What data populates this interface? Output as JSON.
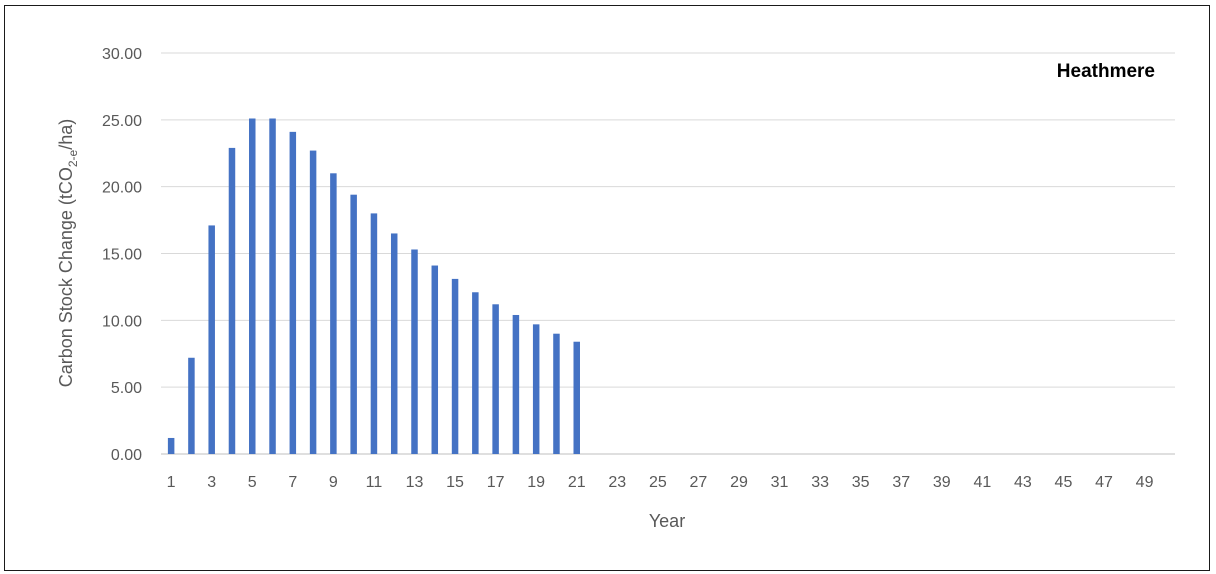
{
  "chart_data": {
    "type": "bar",
    "title": "Heathmere",
    "xlabel": "Year",
    "ylabel": "Carbon Stock Change (tCO",
    "ylabel_subscript": "2-e",
    "ylabel_suffix": "/ha)",
    "ylim": [
      0,
      30
    ],
    "yticks": [
      "0.00",
      "5.00",
      "10.00",
      "15.00",
      "20.00",
      "25.00",
      "30.00"
    ],
    "grid": true,
    "legend": "none",
    "bar_color": "#4472c4",
    "categories": [
      1,
      2,
      3,
      4,
      5,
      6,
      7,
      8,
      9,
      10,
      11,
      12,
      13,
      14,
      15,
      16,
      17,
      18,
      19,
      20,
      21,
      22,
      23,
      24,
      25,
      26,
      27,
      28,
      29,
      30,
      31,
      32,
      33,
      34,
      35,
      36,
      37,
      38,
      39,
      40,
      41,
      42,
      43,
      44,
      45,
      46,
      47,
      48,
      49,
      50
    ],
    "xtick_labels": [
      "1",
      "3",
      "5",
      "7",
      "9",
      "11",
      "13",
      "15",
      "17",
      "19",
      "21",
      "23",
      "25",
      "27",
      "29",
      "31",
      "33",
      "35",
      "37",
      "39",
      "41",
      "43",
      "45",
      "47",
      "49"
    ],
    "values": [
      1.2,
      7.2,
      17.1,
      22.9,
      25.1,
      25.1,
      24.1,
      22.7,
      21.0,
      19.4,
      18.0,
      16.5,
      15.3,
      14.1,
      13.1,
      12.1,
      11.2,
      10.4,
      9.7,
      9.0,
      8.4,
      0,
      0,
      0,
      0,
      0,
      0,
      0,
      0,
      0,
      0,
      0,
      0,
      0,
      0,
      0,
      0,
      0,
      0,
      0,
      0,
      0,
      0,
      0,
      0,
      0,
      0,
      0,
      0,
      0
    ]
  }
}
